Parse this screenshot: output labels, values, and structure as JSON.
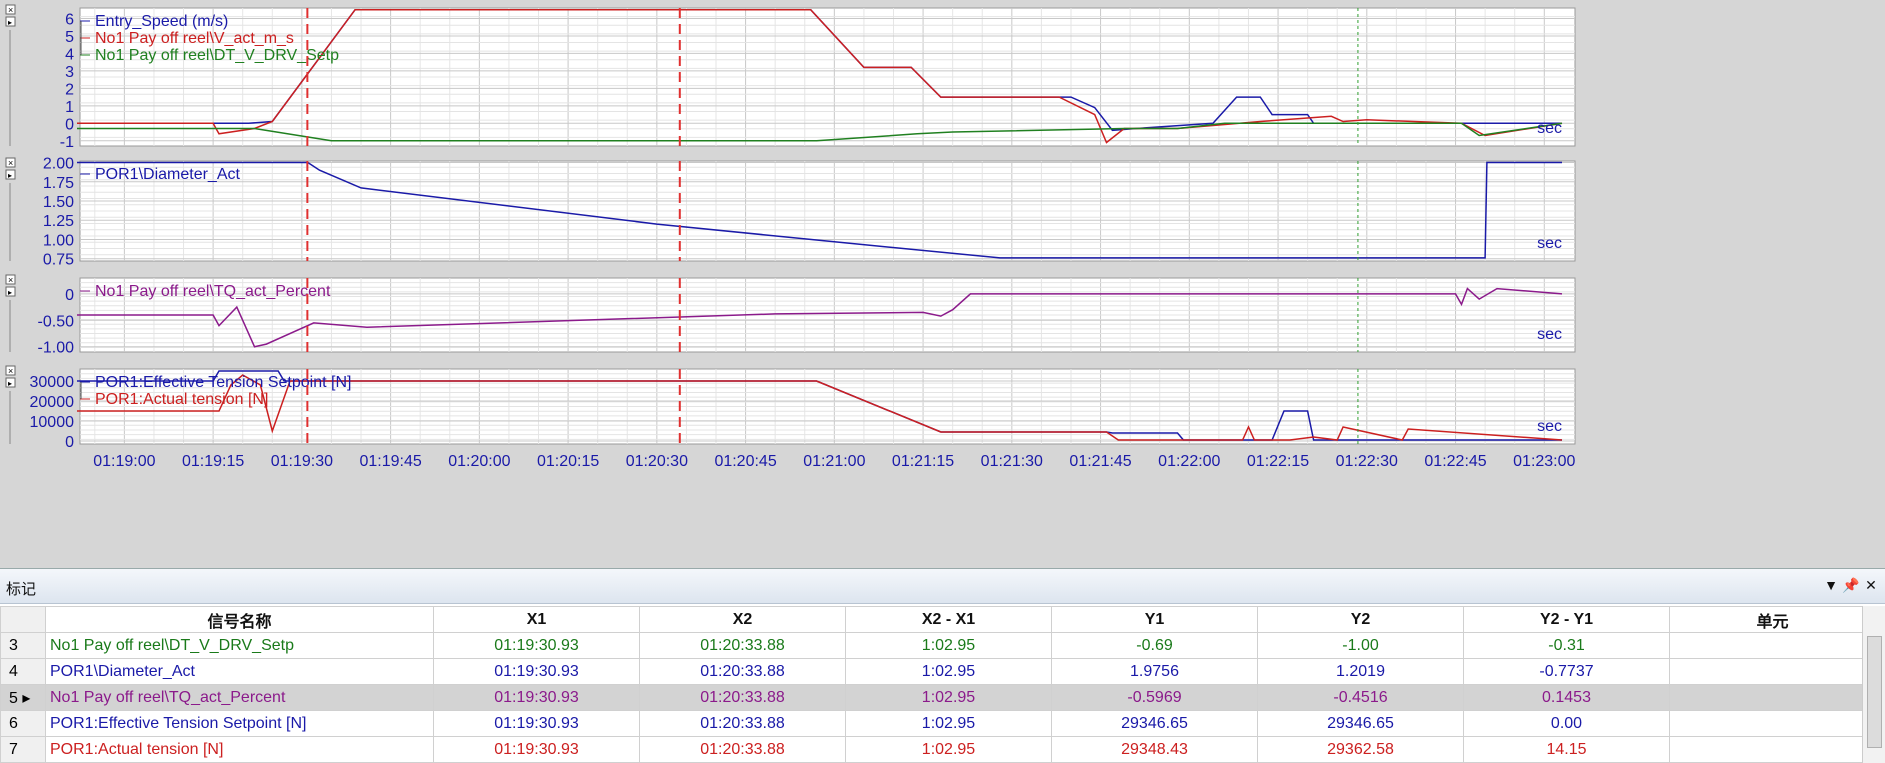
{
  "charts": [
    {
      "legend": [
        {
          "label": "Entry_Speed (m/s)",
          "color": "#1a1aa8"
        },
        {
          "label": "No1 Pay off reel\\V_act_m_s",
          "color": "#cc2020"
        },
        {
          "label": "No1 Pay off reel\\DT_V_DRV_Setp",
          "color": "#208020"
        }
      ],
      "y_ticks": [
        "6",
        "5",
        "4",
        "3",
        "2",
        "1",
        "0",
        "-1"
      ],
      "unit": "sec",
      "ylim": [
        -1.3,
        6.6
      ]
    },
    {
      "legend": [
        {
          "label": "POR1\\Diameter_Act",
          "color": "#1a1aa8"
        }
      ],
      "y_ticks": [
        "2.00",
        "1.75",
        "1.50",
        "1.25",
        "1.00",
        "0.75"
      ],
      "unit": "sec",
      "ylim": [
        0.72,
        2.02
      ]
    },
    {
      "legend": [
        {
          "label": "No1 Pay off reel\\TQ_act_Percent",
          "color": "#8b1a8b"
        }
      ],
      "y_ticks": [
        "0",
        "-0.50",
        "-1.00"
      ],
      "unit": "sec",
      "ylim": [
        -1.1,
        0.3
      ]
    },
    {
      "legend": [
        {
          "label": "POR1:Effective Tension Setpoint [N]",
          "color": "#1a1aa8"
        },
        {
          "label": "POR1:Actual tension [N]",
          "color": "#cc2020"
        }
      ],
      "y_ticks": [
        "30000",
        "20000",
        "10000",
        "0"
      ],
      "unit": "sec",
      "ylim": [
        -1500,
        36000
      ]
    }
  ],
  "x_ticks": [
    "01:19:00",
    "01:19:15",
    "01:19:30",
    "01:19:45",
    "01:20:00",
    "01:20:15",
    "01:20:30",
    "01:20:45",
    "01:21:00",
    "01:21:15",
    "01:21:30",
    "01:21:45",
    "01:22:00",
    "01:22:15",
    "01:22:30",
    "01:22:45",
    "01:23:00"
  ],
  "cursors": {
    "x1_time": "01:19:30.93",
    "x2_time": "01:20:33.88",
    "x3_time": "01:22:28.5"
  },
  "chart_data": [
    {
      "type": "line",
      "x_unit": "sec",
      "series": [
        {
          "name": "Entry_Speed (m/s)",
          "x": [
            "01:18:52",
            "01:19:21",
            "01:19:25",
            "01:19:39",
            "01:20:56",
            "01:21:05",
            "01:21:13",
            "01:21:18",
            "01:21:40",
            "01:21:44",
            "01:21:47",
            "01:21:51",
            "01:22:04",
            "01:22:08",
            "01:22:12",
            "01:22:14",
            "01:22:20",
            "01:22:21",
            "01:22:29",
            "01:23:03"
          ],
          "values": [
            0,
            0,
            0.1,
            6.5,
            6.5,
            3.2,
            3.2,
            1.5,
            1.5,
            0.9,
            -0.4,
            -0.3,
            0,
            1.5,
            1.5,
            0.5,
            0.5,
            0,
            0,
            0
          ]
        },
        {
          "name": "No1 Pay off reel\\V_act_m_s",
          "x": [
            "01:18:52",
            "01:19:15",
            "01:19:16",
            "01:19:22",
            "01:19:25",
            "01:19:39",
            "01:20:56",
            "01:21:05",
            "01:21:13",
            "01:21:18",
            "01:21:38",
            "01:21:44",
            "01:21:46",
            "01:21:49",
            "01:21:58",
            "01:22:12",
            "01:22:24",
            "01:22:26",
            "01:22:30",
            "01:22:46",
            "01:22:50",
            "01:23:03"
          ],
          "values": [
            0,
            0,
            -0.6,
            -0.3,
            0.1,
            6.5,
            6.5,
            3.2,
            3.2,
            1.5,
            1.5,
            0.5,
            -1.1,
            -0.3,
            -0.3,
            0.1,
            0.4,
            0.1,
            0.2,
            0,
            -0.7,
            0
          ]
        },
        {
          "name": "No1 Pay off reel\\DT_V_DRV_Setp",
          "x": [
            "01:18:52",
            "01:19:22",
            "01:19:35",
            "01:20:57",
            "01:21:14",
            "01:21:20",
            "01:21:49",
            "01:21:58",
            "01:22:06",
            "01:22:28",
            "01:22:46",
            "01:22:49",
            "01:23:03"
          ],
          "values": [
            -0.3,
            -0.3,
            -1.0,
            -1.0,
            -0.6,
            -0.5,
            -0.3,
            -0.3,
            0,
            0,
            0,
            -0.7,
            0
          ]
        }
      ]
    },
    {
      "type": "line",
      "x_unit": "sec",
      "series": [
        {
          "name": "POR1\\Diameter_Act",
          "x": [
            "01:18:52",
            "01:19:31",
            "01:19:33",
            "01:19:40",
            "01:20:30",
            "01:21:00",
            "01:21:28",
            "01:22:50",
            "01:22:50.3",
            "01:23:03"
          ],
          "values": [
            2.0,
            2.0,
            1.9,
            1.67,
            1.2,
            0.97,
            0.76,
            0.76,
            2.0,
            2.0
          ]
        }
      ]
    },
    {
      "type": "line",
      "x_unit": "sec",
      "series": [
        {
          "name": "No1 Pay off reel\\TQ_act_Percent",
          "x": [
            "01:18:52",
            "01:19:15",
            "01:19:16",
            "01:19:19",
            "01:19:22",
            "01:19:24",
            "01:19:32",
            "01:19:41",
            "01:20:50",
            "01:21:15",
            "01:21:18",
            "01:21:20",
            "01:21:23",
            "01:22:45",
            "01:22:46",
            "01:22:47",
            "01:22:49",
            "01:22:52",
            "01:23:03"
          ],
          "values": [
            -0.4,
            -0.4,
            -0.6,
            -0.25,
            -1.0,
            -0.95,
            -0.55,
            -0.63,
            -0.38,
            -0.35,
            -0.42,
            -0.3,
            0,
            0,
            -0.2,
            0.1,
            -0.1,
            0.1,
            0
          ]
        }
      ]
    },
    {
      "type": "line",
      "x_unit": "sec",
      "series": [
        {
          "name": "POR1:Effective Tension Setpoint [N]",
          "x": [
            "01:18:52",
            "01:19:15",
            "01:19:16",
            "01:19:26",
            "01:19:27",
            "01:20:57",
            "01:21:18",
            "01:21:30",
            "01:21:46",
            "01:21:47",
            "01:21:58",
            "01:21:59",
            "01:22:14",
            "01:22:16",
            "01:22:20",
            "01:22:21",
            "01:23:03"
          ],
          "values": [
            30000,
            30000,
            35000,
            35000,
            30000,
            30000,
            4500,
            4500,
            4500,
            4000,
            4000,
            500,
            500,
            15000,
            15000,
            500,
            500
          ]
        },
        {
          "name": "POR1:Actual tension [N]",
          "x": [
            "01:18:52",
            "01:19:16",
            "01:19:18",
            "01:19:20",
            "01:19:23",
            "01:19:25",
            "01:19:28",
            "01:20:57",
            "01:21:18",
            "01:21:46",
            "01:21:48",
            "01:22:09",
            "01:22:10",
            "01:22:11",
            "01:22:17",
            "01:22:21",
            "01:22:25",
            "01:22:26",
            "01:22:36",
            "01:22:37",
            "01:23:03"
          ],
          "values": [
            15000,
            15000,
            28000,
            33000,
            28000,
            5000,
            30000,
            30000,
            4500,
            4500,
            500,
            500,
            7000,
            500,
            500,
            2000,
            500,
            7000,
            500,
            6000,
            500
          ]
        }
      ]
    }
  ],
  "marker": {
    "title": "标记",
    "icons": [
      "dropdown-icon",
      "pin-icon",
      "close-icon"
    ],
    "headers": [
      "信号名称",
      "X1",
      "X2",
      "X2 - X1",
      "Y1",
      "Y2",
      "Y2 - Y1",
      "单元"
    ],
    "rows": [
      {
        "n": "3",
        "name": "No1 Pay off reel\\DT_V_DRV_Setp",
        "x1": "01:19:30.93",
        "x2": "01:20:33.88",
        "dx": "1:02.95",
        "y1": "-0.69",
        "y2": "-1.00",
        "dy": "-0.31",
        "unit": "",
        "color": "#1a7a1a"
      },
      {
        "n": "4",
        "name": "POR1\\Diameter_Act",
        "x1": "01:19:30.93",
        "x2": "01:20:33.88",
        "dx": "1:02.95",
        "y1": "1.9756",
        "y2": "1.2019",
        "dy": "-0.7737",
        "unit": "",
        "color": "#1a1aa8"
      },
      {
        "n": "5 ▸",
        "name": "No1 Pay off reel\\TQ_act_Percent",
        "x1": "01:19:30.93",
        "x2": "01:20:33.88",
        "dx": "1:02.95",
        "y1": "-0.5969",
        "y2": "-0.4516",
        "dy": "0.1453",
        "unit": "",
        "color": "#8b1a8b",
        "selected": true
      },
      {
        "n": "6",
        "name": "POR1:Effective Tension Setpoint [N]",
        "x1": "01:19:30.93",
        "x2": "01:20:33.88",
        "dx": "1:02.95",
        "y1": "29346.65",
        "y2": "29346.65",
        "dy": "0.00",
        "unit": "",
        "color": "#1a1aa8"
      },
      {
        "n": "7",
        "name": "POR1:Actual tension [N]",
        "x1": "01:19:30.93",
        "x2": "01:20:33.88",
        "dx": "1:02.95",
        "y1": "29348.43",
        "y2": "29362.58",
        "dy": "14.15",
        "unit": "",
        "color": "#cc2020"
      }
    ]
  }
}
